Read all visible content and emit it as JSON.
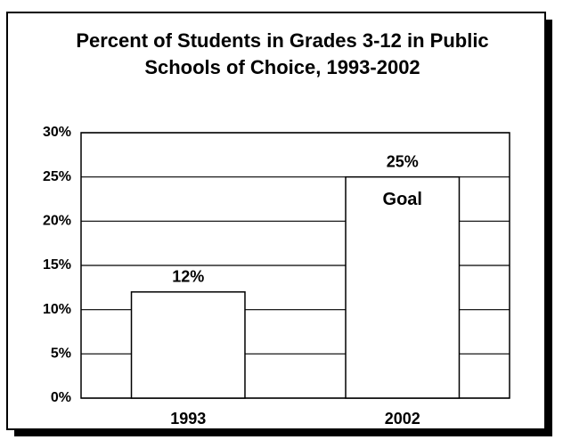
{
  "chart_data": {
    "type": "bar",
    "title": [
      "Percent of Students in Grades 3-12 in Public",
      "Schools of Choice, 1993-2002"
    ],
    "categories": [
      "1993",
      "2002"
    ],
    "values": [
      12,
      25
    ],
    "value_labels": [
      "12%",
      "25%"
    ],
    "annotation": "Goal",
    "color": "#ffffff",
    "ylim": [
      0,
      30
    ],
    "yticks": [
      {
        "value": 0,
        "label": "0%"
      },
      {
        "value": 5,
        "label": "5%"
      },
      {
        "value": 10,
        "label": "10%"
      },
      {
        "value": 15,
        "label": "15%"
      },
      {
        "value": 20,
        "label": "20%"
      },
      {
        "value": 25,
        "label": "25%"
      },
      {
        "value": 30,
        "label": "30%"
      }
    ],
    "grid": true
  }
}
